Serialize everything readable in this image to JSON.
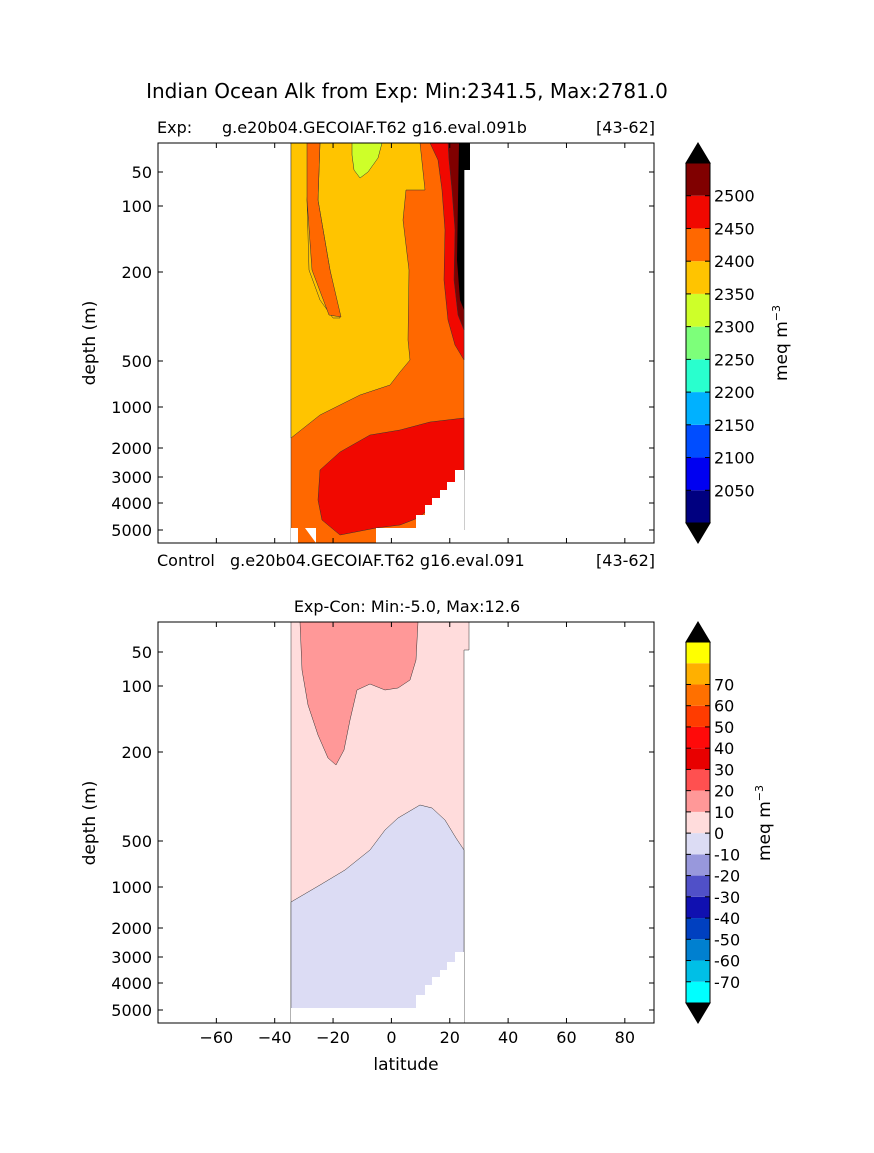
{
  "figure_title": "Indian Ocean Alk from Exp: Min:2341.5, Max:2781.0",
  "top_panel": {
    "label_left": "Exp:",
    "case_name": "g.e20b04.GECOIAF.T62 g16.eval.091b",
    "years": "[43-62]",
    "bottom_label_left": "Control",
    "bottom_case_name": "g.e20b04.GECOIAF.T62 g16.eval.091",
    "bottom_years": "[43-62]"
  },
  "bottom_panel": {
    "title": "Exp-Con: Min:-5.0, Max:12.6"
  },
  "colorbar_top": {
    "unit": "meq m",
    "unit_sup": "−3",
    "colors": [
      "#000080",
      "#0000f1",
      "#004dff",
      "#00b1ff",
      "#29ffce",
      "#7dff7a",
      "#ceff29",
      "#ffc400",
      "#ff6800",
      "#f10800",
      "#800000"
    ],
    "under_color": "#000000",
    "over_color": "#000000",
    "ticks": [
      "2050",
      "2100",
      "2150",
      "2200",
      "2250",
      "2300",
      "2350",
      "2400",
      "2450",
      "2500"
    ]
  },
  "colorbar_bottom": {
    "unit": "meq m",
    "unit_sup": "−3",
    "colors": [
      "#00ffff",
      "#00bfe6",
      "#0080d0",
      "#0040c0",
      "#1010b0",
      "#5050c8",
      "#9898dc",
      "#dcdcf4",
      "#ffdcdc",
      "#ff9898",
      "#ff5050",
      "#e80000",
      "#ff0a0a",
      "#ff3c00",
      "#ff7000",
      "#ffb000",
      "#ffff00"
    ],
    "under_color": "#000000",
    "over_color": "#000000",
    "ticks": [
      "-70",
      "-60",
      "-50",
      "-40",
      "-30",
      "-20",
      "-10",
      "0",
      "10",
      "20",
      "30",
      "40",
      "50",
      "60",
      "70"
    ]
  },
  "chart_data": [
    {
      "type": "contour",
      "title": "Exp: g.e20b04.GECOIAF.T62 g16.eval.091b [43-62]",
      "xlim": [
        -80,
        90
      ],
      "ylim": [
        5500,
        15
      ],
      "yscale": "log-like",
      "ylabel": "depth (m)",
      "yticks": [
        50,
        100,
        200,
        500,
        1000,
        2000,
        3000,
        4000,
        5000
      ],
      "levels": [
        2050,
        2100,
        2150,
        2200,
        2250,
        2300,
        2350,
        2400,
        2450,
        2500
      ],
      "data_extent_lat": [
        -34,
        27
      ],
      "units": "meq m^-3"
    },
    {
      "type": "contour",
      "title": "Exp-Con: Min:-5.0, Max:12.6",
      "xlim": [
        -80,
        90
      ],
      "ylim": [
        5500,
        15
      ],
      "xlabel": "latitude",
      "ylabel": "depth (m)",
      "xticks": [
        -60,
        -40,
        -20,
        0,
        20,
        40,
        60,
        80
      ],
      "yticks": [
        50,
        100,
        200,
        500,
        1000,
        2000,
        3000,
        4000,
        5000
      ],
      "levels": [
        -70,
        -60,
        -50,
        -40,
        -30,
        -20,
        -10,
        0,
        10,
        20,
        30,
        40,
        50,
        60,
        70
      ],
      "data_extent_lat": [
        -34,
        27
      ],
      "units": "meq m^-3"
    }
  ]
}
